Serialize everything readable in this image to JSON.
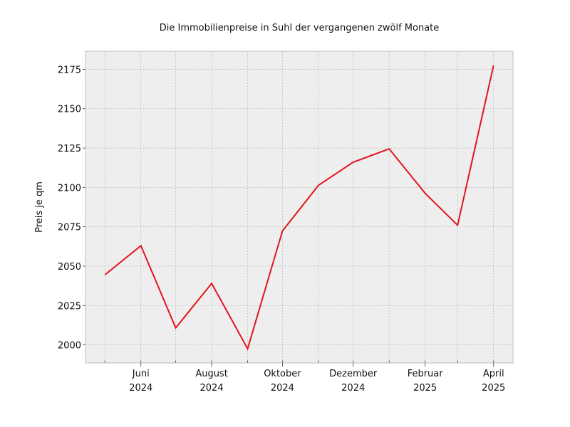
{
  "chart_data": {
    "type": "line",
    "title": "Die Immobilienpreise in Suhl der vergangenen zwölf Monate",
    "xlabel": "",
    "ylabel": "Preis je qm",
    "x": [
      "2024-05",
      "2024-06",
      "2024-07",
      "2024-08",
      "2024-09",
      "2024-10",
      "2024-11",
      "2024-12",
      "2025-01",
      "2025-02",
      "2025-03",
      "2025-04"
    ],
    "series": [
      {
        "values": [
          2044.5,
          2063,
          2010.8,
          2039,
          1997.5,
          2072.3,
          2101.3,
          2116,
          2124.5,
          2096.3,
          2076,
          2177.5
        ]
      }
    ],
    "xticks": [
      {
        "month": "2024-06",
        "label": [
          "Juni",
          "2024"
        ]
      },
      {
        "month": "2024-08",
        "label": [
          "August",
          "2024"
        ]
      },
      {
        "month": "2024-10",
        "label": [
          "Oktober",
          "2024"
        ]
      },
      {
        "month": "2024-12",
        "label": [
          "Dezember",
          "2024"
        ]
      },
      {
        "month": "2025-02",
        "label": [
          "Februar",
          "2025"
        ]
      },
      {
        "month": "2025-04",
        "label": [
          "April",
          "2025"
        ]
      }
    ],
    "yticks": [
      2000,
      2025,
      2050,
      2075,
      2100,
      2125,
      2150,
      2175
    ],
    "ylim": [
      1988.5,
      2186.5
    ],
    "grid": true,
    "colors": {
      "line": "#e3141e",
      "plot_background": "#eeeeee",
      "grid": "#b0b0b0",
      "frame": "#bcbcbc"
    }
  }
}
